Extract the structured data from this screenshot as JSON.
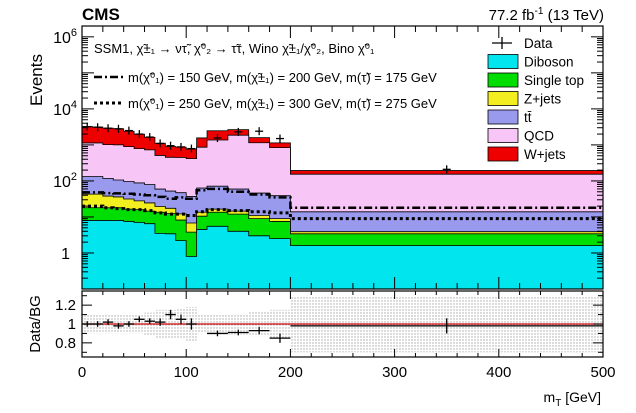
{
  "header": {
    "experiment": "CMS",
    "lumi": "77.2 fb",
    "lumi_sup": "-1",
    "energy": " (13 TeV)"
  },
  "signal_desc": {
    "line1": "SSM1, χ̃±₁ → ντ̃, χ̃⁰₂ → τ̃τ, Wino χ̃±₁/χ̃⁰₂, Bino χ̃⁰₁",
    "sig1": "m(χ̃⁰₁) = 150 GeV, m(χ̃±₁) = 200 GeV, m(τ̃) = 175 GeV",
    "sig2": "m(χ̃⁰₁) = 250 GeV, m(χ̃±₁) = 300 GeV, m(τ̃) = 275 GeV"
  },
  "colors": {
    "Diboson": "#00e5ee",
    "Single top": "#00dd00",
    "Z+jets": "#f2ee20",
    "ttbar": "#9999ee",
    "QCD": "#f7c6f7",
    "W+jets": "#ee0000",
    "ratio_line": "#cc0000",
    "band": "#c8c8c8"
  },
  "chart_data": [
    {
      "type": "area",
      "subtype": "stacked-histogram",
      "xlabel": "m",
      "xlabel_sub": "T",
      "xlabel_unit": " [GeV]",
      "ylabel": "Events",
      "log_y": true,
      "xlim": [
        0,
        500
      ],
      "ylim": [
        0.1,
        2000000
      ],
      "y_ticks": [
        {
          "v": 1,
          "base": "1",
          "exp": ""
        },
        {
          "v": 100,
          "base": "10",
          "exp": "2"
        },
        {
          "v": 10000,
          "base": "10",
          "exp": "4"
        },
        {
          "v": 1000000,
          "base": "10",
          "exp": "6"
        }
      ],
      "bin_edges": [
        0,
        10,
        20,
        30,
        40,
        50,
        60,
        70,
        80,
        90,
        100,
        110,
        120,
        140,
        160,
        180,
        200,
        500
      ],
      "series": [
        {
          "name": "Diboson",
          "values": [
            8,
            8,
            8,
            8,
            7.5,
            7,
            6.5,
            3.5,
            3.4,
            2.2,
            0.8,
            4.5,
            5.5,
            4,
            3,
            2.5,
            1.6
          ]
        },
        {
          "name": "Single top",
          "values": [
            10,
            10,
            10,
            10,
            9,
            9,
            8,
            10,
            9,
            6,
            3,
            6,
            8,
            8,
            6,
            5,
            1.8
          ]
        },
        {
          "name": "Z+jets",
          "values": [
            25,
            25,
            20,
            18,
            15,
            12,
            10,
            6,
            5,
            4,
            3,
            3,
            3,
            2.5,
            2,
            1.5,
            0.5
          ]
        },
        {
          "name": "tt̄",
          "values": [
            90,
            90,
            80,
            70,
            65,
            60,
            55,
            40,
            35,
            35,
            30,
            50,
            55,
            45,
            35,
            30,
            10
          ]
        },
        {
          "name": "QCD",
          "values": [
            1000,
            1000,
            900,
            900,
            800,
            700,
            650,
            450,
            400,
            400,
            380,
            800,
            1300,
            1800,
            1100,
            800,
            140
          ]
        },
        {
          "name": "W+jets",
          "values": [
            2100,
            2000,
            1900,
            1800,
            1500,
            1200,
            900,
            600,
            450,
            420,
            350,
            700,
            1100,
            800,
            450,
            300,
            40
          ]
        }
      ],
      "data_points": [
        {
          "x": 5,
          "y": 3200
        },
        {
          "x": 15,
          "y": 3100
        },
        {
          "x": 25,
          "y": 2900
        },
        {
          "x": 35,
          "y": 2800
        },
        {
          "x": 45,
          "y": 2500
        },
        {
          "x": 55,
          "y": 2000
        },
        {
          "x": 65,
          "y": 1650
        },
        {
          "x": 75,
          "y": 1100
        },
        {
          "x": 85,
          "y": 950
        },
        {
          "x": 95,
          "y": 880
        },
        {
          "x": 105,
          "y": 790
        },
        {
          "x": 130,
          "y": 1550
        },
        {
          "x": 150,
          "y": 2300
        },
        {
          "x": 170,
          "y": 2400
        },
        {
          "x": 190,
          "y": 1500
        },
        {
          "x": 350,
          "y": 210
        }
      ],
      "signal_series": [
        {
          "name": "sig1",
          "style": "dash-dot",
          "values": [
            48,
            48,
            46,
            45,
            44,
            42,
            40,
            36,
            32,
            35,
            32,
            55,
            60,
            50,
            42,
            35,
            18
          ]
        },
        {
          "name": "sig2",
          "style": "dotted",
          "values": [
            20,
            20,
            18,
            17,
            16,
            16,
            15,
            13,
            12,
            12,
            11,
            14,
            16,
            15,
            14,
            13,
            9
          ]
        }
      ],
      "legend": [
        "Data",
        "Diboson",
        "Single top",
        "Z+jets",
        "tt̄",
        "QCD",
        "W+jets"
      ],
      "legend_position": "top-right"
    },
    {
      "type": "scatter",
      "subtype": "ratio-panel",
      "ylabel": "Data/BG",
      "xlim": [
        0,
        500
      ],
      "ylim": [
        0.65,
        1.35
      ],
      "y_ticks": [
        "0.8",
        "1",
        "1.2"
      ],
      "x_ticks": [
        "0",
        "100",
        "200",
        "300",
        "400",
        "500"
      ],
      "ratio_points": [
        {
          "x": 5,
          "y": 1.0,
          "err": 0.03
        },
        {
          "x": 15,
          "y": 1.0,
          "err": 0.03
        },
        {
          "x": 25,
          "y": 1.02,
          "err": 0.03
        },
        {
          "x": 35,
          "y": 0.98,
          "err": 0.03
        },
        {
          "x": 45,
          "y": 1.0,
          "err": 0.03
        },
        {
          "x": 55,
          "y": 1.05,
          "err": 0.03
        },
        {
          "x": 65,
          "y": 1.03,
          "err": 0.03
        },
        {
          "x": 75,
          "y": 1.02,
          "err": 0.04
        },
        {
          "x": 85,
          "y": 1.1,
          "err": 0.05
        },
        {
          "x": 95,
          "y": 1.05,
          "err": 0.05
        },
        {
          "x": 105,
          "y": 1.0,
          "err": 0.06
        },
        {
          "x": 130,
          "y": 0.9,
          "err": 0.03
        },
        {
          "x": 150,
          "y": 0.91,
          "err": 0.03
        },
        {
          "x": 170,
          "y": 0.93,
          "err": 0.04
        },
        {
          "x": 190,
          "y": 0.85,
          "err": 0.05
        },
        {
          "x": 350,
          "y": 0.98,
          "err": 0.08
        }
      ],
      "band_half_width": [
        0.1,
        0.1,
        0.1,
        0.1,
        0.1,
        0.1,
        0.12,
        0.15,
        0.15,
        0.16,
        0.18,
        0.1,
        0.1,
        0.11,
        0.13,
        0.15,
        0.3
      ]
    }
  ]
}
